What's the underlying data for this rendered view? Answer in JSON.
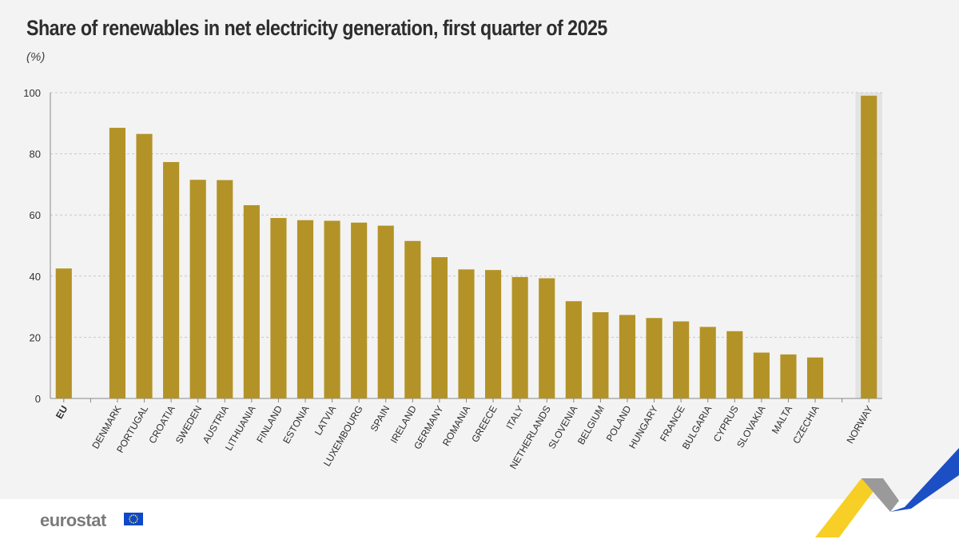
{
  "header": {
    "title": "Share of renewables in net electricity generation, first quarter of 2025",
    "unit": "(%)"
  },
  "footer": {
    "brand": "eurostat",
    "flag_icon": "eu-flag-icon"
  },
  "colors": {
    "bar": "#b39327",
    "highlight_band": "#e3e3e3",
    "grid": "#c8c8c8",
    "axis": "#888888",
    "background": "#f3f3f3"
  },
  "chart_data": {
    "type": "bar",
    "title": "Share of renewables in net electricity generation, first quarter of 2025",
    "ylabel": "(%)",
    "xlabel": "",
    "ylim": [
      0,
      100
    ],
    "yticks": [
      0,
      20,
      40,
      60,
      80,
      100
    ],
    "grid": true,
    "highlight_category": "NORWAY",
    "bold_category": "EU",
    "categories": [
      "EU",
      "",
      "DENMARK",
      "PORTUGAL",
      "CROATIA",
      "SWEDEN",
      "AUSTRIA",
      "LITHUANIA",
      "FINLAND",
      "ESTONIA",
      "LATVIA",
      "LUXEMBOURG",
      "SPAIN",
      "IRELAND",
      "GERMANY",
      "ROMANIA",
      "GREECE",
      "ITALY",
      "NETHERLANDS",
      "SLOVENIA",
      "BELGIUM",
      "POLAND",
      "HUNGARY",
      "FRANCE",
      "BULGARIA",
      "CYPRUS",
      "SLOVAKIA",
      "MALTA",
      "CZECHIA",
      "",
      "NORWAY"
    ],
    "values": [
      42.5,
      null,
      88.5,
      86.5,
      77.3,
      71.5,
      71.4,
      63.2,
      59.0,
      58.3,
      58.1,
      57.5,
      56.5,
      51.5,
      46.2,
      42.2,
      42.0,
      39.7,
      39.3,
      31.8,
      28.2,
      27.3,
      26.3,
      25.2,
      23.4,
      22.0,
      15.0,
      14.4,
      13.4,
      null,
      99.0
    ]
  }
}
